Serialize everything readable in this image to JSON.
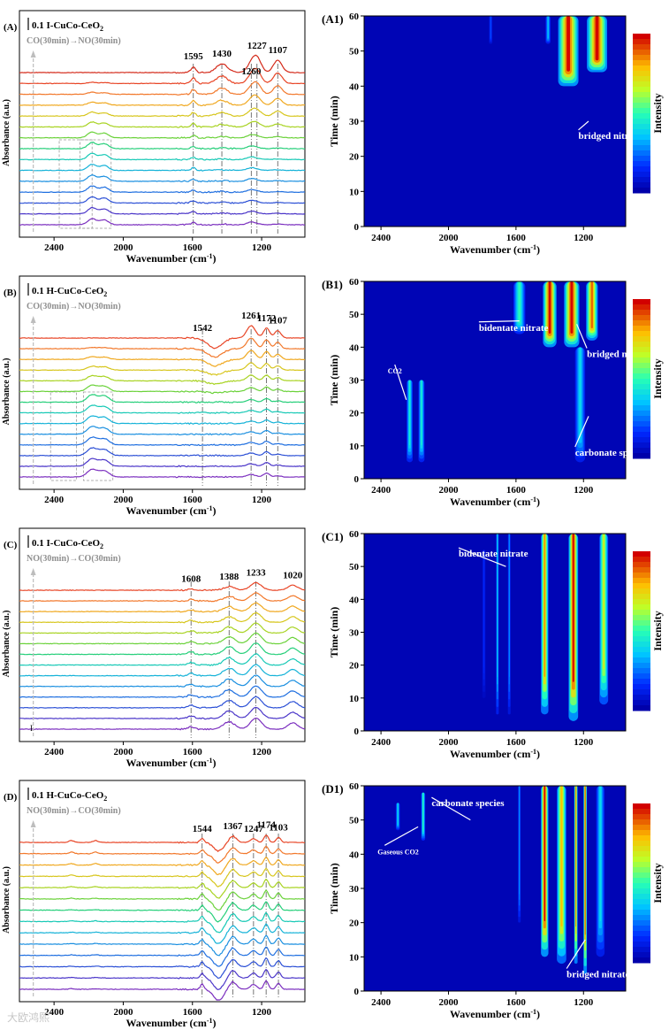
{
  "watermark": "大欧鸿熙",
  "colors": {
    "curves": [
      "#7b2fbf",
      "#4b36c9",
      "#2c50d6",
      "#1f6fe0",
      "#1a8fe0",
      "#16b3d8",
      "#17c9b6",
      "#26cf7a",
      "#6bd23a",
      "#a8d321",
      "#d7c61d",
      "#f0a81f",
      "#f2782b",
      "#e84526",
      "#d42a1a"
    ],
    "axis": "#000000",
    "guide": "#555555",
    "arrow": "#bdbdbd"
  },
  "chart_data": [
    {
      "id": "A",
      "type": "line",
      "panel_label": "(A)",
      "title": "0.1 I-CuCo-CeO",
      "title_subscript": "2",
      "scale_label": "",
      "sequence_label": "CO(30min)→NO(30min)",
      "xlabel": "Wavenumber (cm",
      "xlabel_sup": "-1",
      "xlabel_end": ")",
      "ylabel": "Absorbance (a.u.)",
      "xlim": [
        2600,
        950
      ],
      "xticks": [
        2400,
        2000,
        1600,
        1200
      ],
      "n_curves": 15,
      "peak_labels": [
        {
          "wavenumber": 1595,
          "text": "1595",
          "curve": 14
        },
        {
          "wavenumber": 1430,
          "text": "1430",
          "curve": 14
        },
        {
          "wavenumber": 1260,
          "text": "1260",
          "curve": 12
        },
        {
          "wavenumber": 1227,
          "text": "1227",
          "curve": 14
        },
        {
          "wavenumber": 1107,
          "text": "1107",
          "curve": 14
        }
      ],
      "guide_lines": [
        1595,
        1430,
        1260,
        1227,
        1107
      ],
      "boxes": [
        {
          "x1": 2370,
          "x2": 2180
        },
        {
          "x1": 2250,
          "x2": 2070
        }
      ],
      "features": [
        {
          "center": 2180,
          "width": 35,
          "early": 0.5,
          "late": 0
        },
        {
          "center": 2110,
          "width": 35,
          "early": 0.4,
          "late": 0
        },
        {
          "center": 1595,
          "width": 18,
          "early": 0.2,
          "late": 0.5
        },
        {
          "center": 1430,
          "width": 45,
          "early": 0.05,
          "late": 0.7
        },
        {
          "center": 1260,
          "width": 35,
          "early": 0.2,
          "late": 0.6
        },
        {
          "center": 1227,
          "width": 35,
          "early": 0.05,
          "late": 1.1
        },
        {
          "center": 1107,
          "width": 35,
          "early": 0.05,
          "late": 1.0
        }
      ]
    },
    {
      "id": "B",
      "type": "line",
      "panel_label": "(B)",
      "title": "0.1 H-CuCo-CeO",
      "title_subscript": "2",
      "scale_label": "",
      "sequence_label": "CO(30min)→NO(30min)",
      "xlabel": "Wavenumber (cm",
      "xlabel_sup": "-1",
      "xlabel_end": ")",
      "ylabel": "Absorbance (a.u.)",
      "xlim": [
        2600,
        950
      ],
      "xticks": [
        2400,
        2000,
        1600,
        1200
      ],
      "n_curves": 14,
      "peak_labels": [
        {
          "wavenumber": 1542,
          "text": "1542",
          "curve": 13
        },
        {
          "wavenumber": 1261,
          "text": "1261",
          "curve": 13
        },
        {
          "wavenumber": 1172,
          "text": "1172",
          "curve": 13
        },
        {
          "wavenumber": 1107,
          "text": "1107",
          "curve": 13
        }
      ],
      "guide_lines": [
        1542,
        1261,
        1172,
        1107
      ],
      "boxes": [
        {
          "x1": 2420,
          "x2": 2270
        },
        {
          "x1": 2230,
          "x2": 2060
        }
      ],
      "features": [
        {
          "center": 2180,
          "width": 40,
          "early": 0.6,
          "late": 0
        },
        {
          "center": 2110,
          "width": 40,
          "early": 0.5,
          "late": 0
        },
        {
          "center": 1470,
          "width": 60,
          "early": 0,
          "late": -0.8
        },
        {
          "center": 1261,
          "width": 35,
          "early": 0.2,
          "late": 1.0
        },
        {
          "center": 1172,
          "width": 25,
          "early": 0.3,
          "late": 0.8
        },
        {
          "center": 1107,
          "width": 25,
          "early": 0.1,
          "late": 0.6
        }
      ]
    },
    {
      "id": "C",
      "type": "line",
      "panel_label": "(C)",
      "title": "0.1  I-CuCo-CeO",
      "title_subscript": "2",
      "scale_label": "I",
      "sequence_label": "NO(30min)→CO(30min)",
      "xlabel": "Wavenumber (cm",
      "xlabel_sup": "-1",
      "xlabel_end": ")",
      "ylabel": "Absorbance (a.u.)",
      "xlim": [
        2600,
        950
      ],
      "xticks": [
        2400,
        2000,
        1600,
        1200
      ],
      "n_curves": 14,
      "peak_labels": [
        {
          "wavenumber": 1608,
          "text": "1608",
          "curve": 13
        },
        {
          "wavenumber": 1388,
          "text": "1388",
          "curve": 13
        },
        {
          "wavenumber": 1233,
          "text": "1233",
          "curve": 13
        },
        {
          "wavenumber": 1020,
          "text": "1020",
          "curve": 13
        }
      ],
      "guide_lines": [
        1608,
        1388,
        1233
      ],
      "boxes": [],
      "features": [
        {
          "center": 1608,
          "width": 25,
          "early": 0.2,
          "late": 0.1
        },
        {
          "center": 1388,
          "width": 45,
          "early": 0.6,
          "late": 0.3
        },
        {
          "center": 1233,
          "width": 45,
          "early": 0.9,
          "late": 0.6
        },
        {
          "center": 1020,
          "width": 40,
          "early": 0.5,
          "late": 0.4
        }
      ]
    },
    {
      "id": "D",
      "type": "line",
      "panel_label": "(D)",
      "title": "0.1 H-CuCo-CeO",
      "title_subscript": "2",
      "scale_label": "",
      "sequence_label": "NO(30min)→CO(30min)",
      "xlabel": "Wavenumber (cm",
      "xlabel_sup": "-1",
      "xlabel_end": ")",
      "ylabel": "Absorbance (a.u.)",
      "xlim": [
        2600,
        950
      ],
      "xticks": [
        2400,
        2000,
        1600,
        1200
      ],
      "n_curves": 14,
      "peak_labels": [
        {
          "wavenumber": 1544,
          "text": "1544",
          "curve": 13
        },
        {
          "wavenumber": 1367,
          "text": "1367",
          "curve": 13
        },
        {
          "wavenumber": 1247,
          "text": "1247",
          "curve": 13
        },
        {
          "wavenumber": 1174,
          "text": "1174",
          "curve": 13
        },
        {
          "wavenumber": 1103,
          "text": "1103",
          "curve": 13
        }
      ],
      "guide_lines": [
        1544,
        1367,
        1247,
        1174,
        1103
      ],
      "boxes": [],
      "features": [
        {
          "center": 1544,
          "width": 15,
          "early": 0.4,
          "late": 0.3
        },
        {
          "center": 1450,
          "width": 40,
          "early": -0.9,
          "late": -0.7
        },
        {
          "center": 1367,
          "width": 30,
          "early": 0.6,
          "late": 0.5
        },
        {
          "center": 1247,
          "width": 25,
          "early": 0.4,
          "late": 0.3
        },
        {
          "center": 1174,
          "width": 18,
          "early": 0.7,
          "late": 0.6
        },
        {
          "center": 1103,
          "width": 18,
          "early": 0.5,
          "late": 0.4
        },
        {
          "center": 2300,
          "width": 20,
          "early": 0.05,
          "late": 0.15
        },
        {
          "center": 2160,
          "width": 20,
          "early": 0.05,
          "late": 0.15
        }
      ]
    },
    {
      "id": "A1",
      "type": "heatmap",
      "panel_label": "(A1)",
      "xlabel": "Wavenumber (cm",
      "xlabel_sup": "-1",
      "xlabel_end": ")",
      "ylabel": "Time (min)",
      "colorbar_label": "Intensity",
      "xlim": [
        2500,
        950
      ],
      "ylim": [
        0,
        60
      ],
      "xticks": [
        2400,
        2000,
        1600,
        1200
      ],
      "yticks": [
        0,
        10,
        20,
        30,
        40,
        50,
        60
      ],
      "blobs": [
        {
          "x": 1290,
          "w": 60,
          "t0": 40,
          "t1": 60,
          "peak": 1.0
        },
        {
          "x": 1120,
          "w": 60,
          "t0": 44,
          "t1": 60,
          "peak": 1.0
        },
        {
          "x": 1410,
          "w": 15,
          "t0": 52,
          "t1": 60,
          "peak": 0.35
        },
        {
          "x": 1750,
          "w": 10,
          "t0": 52,
          "t1": 60,
          "peak": 0.2
        }
      ],
      "annotations": [
        {
          "text": "bridged nitrate",
          "x": 1230,
          "y": 25,
          "arrow_to": [
            1170,
            30
          ]
        }
      ]
    },
    {
      "id": "B1",
      "type": "heatmap",
      "panel_label": "(B1)",
      "xlabel": "Wavenumber (cm",
      "xlabel_sup": "-1",
      "xlabel_end": ")",
      "ylabel": "Time (min)",
      "colorbar_label": "Intensity",
      "xlim": [
        2500,
        950
      ],
      "ylim": [
        0,
        60
      ],
      "xticks": [
        2400,
        2000,
        1600,
        1200
      ],
      "yticks": [
        0,
        10,
        20,
        30,
        40,
        50,
        60
      ],
      "blobs": [
        {
          "x": 1400,
          "w": 40,
          "t0": 40,
          "t1": 60,
          "peak": 1.0
        },
        {
          "x": 1270,
          "w": 45,
          "t0": 40,
          "t1": 60,
          "peak": 1.0
        },
        {
          "x": 1150,
          "w": 35,
          "t0": 42,
          "t1": 60,
          "peak": 0.9
        },
        {
          "x": 1580,
          "w": 35,
          "t0": 44,
          "t1": 60,
          "peak": 0.5
        },
        {
          "x": 2230,
          "w": 18,
          "t0": 5,
          "t1": 30,
          "peak": 0.45
        },
        {
          "x": 2160,
          "w": 18,
          "t0": 5,
          "t1": 30,
          "peak": 0.45
        },
        {
          "x": 1220,
          "w": 30,
          "t0": 5,
          "t1": 40,
          "peak": 0.4
        }
      ],
      "annotations": [
        {
          "text": "bidentate nitrate",
          "x": 1820,
          "y": 45,
          "arrow_to": [
            1580,
            48
          ]
        },
        {
          "text": "bridged nitrate",
          "x": 1180,
          "y": 37,
          "arrow_to": [
            1240,
            47
          ]
        },
        {
          "text": "CO2",
          "x": 2360,
          "y": 32,
          "arrow_to": [
            2250,
            24
          ]
        },
        {
          "text": "carbonate species",
          "x": 1250,
          "y": 7,
          "arrow_to": [
            1170,
            19
          ]
        }
      ]
    },
    {
      "id": "C1",
      "type": "heatmap",
      "panel_label": "(C1)",
      "xlabel": "Wavenumber (cm",
      "xlabel_sup": "-1",
      "xlabel_end": ")",
      "ylabel": "Time (min)",
      "colorbar_label": "Intensity",
      "xlim": [
        2500,
        950
      ],
      "ylim": [
        0,
        60
      ],
      "xticks": [
        2400,
        2000,
        1600,
        1200
      ],
      "yticks": [
        0,
        10,
        20,
        30,
        40,
        50,
        60
      ],
      "blobs": [
        {
          "x": 1430,
          "w": 22,
          "t0": 5,
          "t1": 60,
          "peak": 0.85
        },
        {
          "x": 1260,
          "w": 28,
          "t0": 3,
          "t1": 60,
          "peak": 1.0
        },
        {
          "x": 1080,
          "w": 26,
          "t0": 8,
          "t1": 60,
          "peak": 0.7
        },
        {
          "x": 1710,
          "w": 8,
          "t0": 5,
          "t1": 60,
          "peak": 0.4
        },
        {
          "x": 1640,
          "w": 8,
          "t0": 5,
          "t1": 60,
          "peak": 0.3
        },
        {
          "x": 1790,
          "w": 10,
          "t0": 10,
          "t1": 55,
          "peak": 0.15
        }
      ],
      "annotations": [
        {
          "text": "bidentate nitrate",
          "x": 1940,
          "y": 53,
          "arrow_to": [
            1660,
            50
          ]
        }
      ]
    },
    {
      "id": "D1",
      "type": "heatmap",
      "panel_label": "(D1)",
      "xlabel": "Wavenumber (cm",
      "xlabel_sup": "-1",
      "xlabel_end": ")",
      "ylabel": "Time (min)",
      "colorbar_label": "Intensity",
      "xlim": [
        2500,
        950
      ],
      "ylim": [
        0,
        60
      ],
      "xticks": [
        2400,
        2000,
        1600,
        1200
      ],
      "yticks": [
        0,
        10,
        20,
        30,
        40,
        50,
        60
      ],
      "blobs": [
        {
          "x": 1430,
          "w": 22,
          "t0": 10,
          "t1": 60,
          "peak": 1.0
        },
        {
          "x": 1330,
          "w": 28,
          "t0": 8,
          "t1": 60,
          "peak": 0.8
        },
        {
          "x": 1245,
          "w": 10,
          "t0": 8,
          "t1": 60,
          "peak": 0.9
        },
        {
          "x": 1190,
          "w": 10,
          "t0": 5,
          "t1": 60,
          "peak": 0.95
        },
        {
          "x": 1100,
          "w": 25,
          "t0": 10,
          "t1": 60,
          "peak": 0.4
        },
        {
          "x": 2300,
          "w": 12,
          "t0": 47,
          "t1": 55,
          "peak": 0.4
        },
        {
          "x": 2150,
          "w": 12,
          "t0": 44,
          "t1": 58,
          "peak": 0.5
        },
        {
          "x": 1580,
          "w": 8,
          "t0": 20,
          "t1": 60,
          "peak": 0.3
        }
      ],
      "annotations": [
        {
          "text": "carbonate species",
          "x": 2100,
          "y": 54,
          "arrow_to": [
            1870,
            50
          ]
        },
        {
          "text": "Gaseous CO2",
          "x": 2420,
          "y": 40,
          "arrow_to": [
            2180,
            48
          ]
        },
        {
          "text": "bridged nitrate",
          "x": 1300,
          "y": 4,
          "arrow_to": [
            1190,
            15
          ]
        }
      ]
    }
  ]
}
